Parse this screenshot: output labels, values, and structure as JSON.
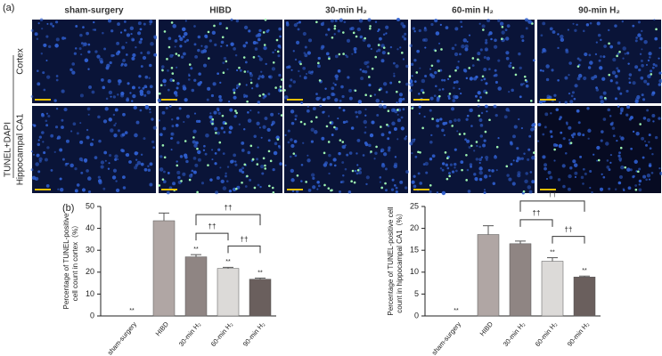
{
  "figure_a": {
    "label": "(a)",
    "stain": "TUNEL+DAPI",
    "columns": [
      "sham-surgery",
      "HIBD",
      "30-min H₂",
      "60-min H₂",
      "90-min H₂"
    ],
    "rows": [
      "Cortex",
      "Hippocampal CA1"
    ]
  },
  "panel_b_label": "(b)",
  "chart_data": [
    {
      "type": "bar",
      "ylabel": [
        "Percentage of TUNEL-positive",
        "cell count in cortex（%）"
      ],
      "categories": [
        "sham-surgery",
        "HIBD",
        "30-min H₂",
        "60-min H₂",
        "90-min H₂"
      ],
      "values": [
        0,
        43.5,
        27,
        21.7,
        16.8
      ],
      "errors": [
        0,
        3.5,
        1,
        0.5,
        0.5
      ],
      "colors": [
        "#ffffff",
        "#b0a6a4",
        "#8f8583",
        "#dcdad8",
        "#6a5f5d"
      ],
      "value_labels": [
        "**",
        null,
        "**",
        "**",
        "**"
      ],
      "brackets": [
        {
          "from": "30-min H₂",
          "to": "90-min H₂",
          "label": "††"
        },
        {
          "from": "30-min H₂",
          "to": "60-min H₂",
          "label": "††"
        },
        {
          "from": "60-min H₂",
          "to": "90-min H₂",
          "label": "††"
        }
      ],
      "ylim": [
        0,
        50
      ],
      "yticks": [
        0,
        10,
        20,
        30,
        40,
        50
      ]
    },
    {
      "type": "bar",
      "ylabel": [
        "Percentage of TUNEL-positive  cell",
        "count in hippocampal CA1（%）"
      ],
      "categories": [
        "sham-surgery",
        "HIBD",
        "30-min H₂",
        "60-min H₂",
        "90-min H₂"
      ],
      "values": [
        0,
        18.6,
        16.5,
        12.5,
        8.9
      ],
      "errors": [
        0,
        2,
        0.6,
        0.8,
        0.2
      ],
      "colors": [
        "#ffffff",
        "#b0a6a4",
        "#8f8583",
        "#dcdad8",
        "#6a5f5d"
      ],
      "value_labels": [
        "**",
        null,
        null,
        "**",
        "**"
      ],
      "brackets": [
        {
          "from": "30-min H₂",
          "to": "90-min H₂",
          "label": "††"
        },
        {
          "from": "30-min H₂",
          "to": "60-min H₂",
          "label": "††"
        },
        {
          "from": "60-min H₂",
          "to": "90-min H₂",
          "label": "††"
        }
      ],
      "ylim": [
        0,
        25
      ],
      "yticks": [
        0,
        5,
        10,
        15,
        20,
        25
      ]
    }
  ]
}
